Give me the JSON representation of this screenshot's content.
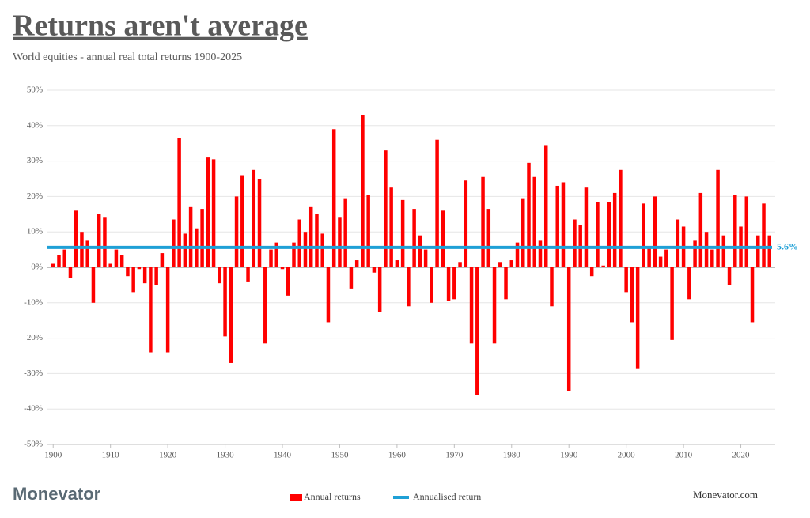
{
  "header": {
    "title": "Returns aren't average",
    "subtitle": "World equities - annual real total returns 1900-2025"
  },
  "footer": {
    "logo": "Monevator",
    "site": "Monevator.com"
  },
  "chart_data": {
    "type": "bar",
    "x": [
      1900,
      1901,
      1902,
      1903,
      1904,
      1905,
      1906,
      1907,
      1908,
      1909,
      1910,
      1911,
      1912,
      1913,
      1914,
      1915,
      1916,
      1917,
      1918,
      1919,
      1920,
      1921,
      1922,
      1923,
      1924,
      1925,
      1926,
      1927,
      1928,
      1929,
      1930,
      1931,
      1932,
      1933,
      1934,
      1935,
      1936,
      1937,
      1938,
      1939,
      1940,
      1941,
      1942,
      1943,
      1944,
      1945,
      1946,
      1947,
      1948,
      1949,
      1950,
      1951,
      1952,
      1953,
      1954,
      1955,
      1956,
      1957,
      1958,
      1959,
      1960,
      1961,
      1962,
      1963,
      1964,
      1965,
      1966,
      1967,
      1968,
      1969,
      1970,
      1971,
      1972,
      1973,
      1974,
      1975,
      1976,
      1977,
      1978,
      1979,
      1980,
      1981,
      1982,
      1983,
      1984,
      1985,
      1986,
      1987,
      1988,
      1989,
      1990,
      1991,
      1992,
      1993,
      1994,
      1995,
      1996,
      1997,
      1998,
      1999,
      2000,
      2001,
      2002,
      2003,
      2004,
      2005,
      2006,
      2007,
      2008,
      2009,
      2010,
      2011,
      2012,
      2013,
      2014,
      2015,
      2016,
      2017,
      2018,
      2019,
      2020,
      2021,
      2022,
      2023,
      2024,
      2025
    ],
    "series": [
      {
        "name": "Annual returns",
        "color": "#ff0000",
        "values": [
          1,
          3.5,
          5,
          -3,
          16,
          10,
          7.5,
          -10,
          15,
          14,
          1,
          5,
          3.5,
          -2.5,
          -7,
          -0.5,
          -4.5,
          -24,
          -5,
          4,
          -24,
          13.5,
          36.5,
          9.5,
          17,
          11,
          16.5,
          31,
          30.5,
          -4.5,
          -19.5,
          -27,
          20,
          26,
          -4,
          27.5,
          25,
          -21.5,
          5,
          7,
          -0.5,
          -8,
          7,
          13.5,
          10,
          17,
          15,
          9.5,
          -15.5,
          39,
          14,
          19.5,
          -6,
          2,
          43,
          20.5,
          -1.5,
          -12.5,
          33,
          22.5,
          2,
          19,
          -11,
          16.5,
          9,
          5,
          -10,
          36,
          16,
          -9.5,
          -9,
          1.5,
          24.5,
          -21.5,
          -36,
          25.5,
          16.5,
          -21.5,
          1.5,
          -9,
          2,
          7,
          19.5,
          29.5,
          25.5,
          7.5,
          34.5,
          -11,
          23,
          24,
          -35,
          13.5,
          12,
          22.5,
          -2.5,
          18.5,
          0.5,
          18.5,
          21,
          27.5,
          -7,
          -15.5,
          -28.5,
          18,
          5.5,
          20,
          3,
          5,
          -20.5,
          13.5,
          11.5,
          -9,
          7.5,
          21,
          10,
          5,
          27.5,
          9,
          -5,
          20.5,
          11.5,
          20,
          -15.5,
          9,
          18,
          9
        ]
      }
    ],
    "reference_line": {
      "name": "Annualised return",
      "color": "#1fa0d6",
      "value": 5.6,
      "value_label": "5.6%"
    },
    "xlim": [
      1899,
      2026
    ],
    "xticks": [
      1900,
      1910,
      1920,
      1930,
      1940,
      1950,
      1960,
      1970,
      1980,
      1990,
      2000,
      2010,
      2020
    ],
    "ylim": [
      -50,
      50
    ],
    "yticks": [
      {
        "value": -50,
        "label": "-50%"
      },
      {
        "value": -40,
        "label": "-40%"
      },
      {
        "value": -30,
        "label": "-30%"
      },
      {
        "value": -20,
        "label": "-20%"
      },
      {
        "value": -10,
        "label": "-10%"
      },
      {
        "value": 0,
        "label": "0%"
      },
      {
        "value": 10,
        "label": "10%"
      },
      {
        "value": 20,
        "label": "20%"
      },
      {
        "value": 30,
        "label": "30%"
      },
      {
        "value": 40,
        "label": "40%"
      },
      {
        "value": 50,
        "label": "50%"
      }
    ],
    "grid": true
  }
}
